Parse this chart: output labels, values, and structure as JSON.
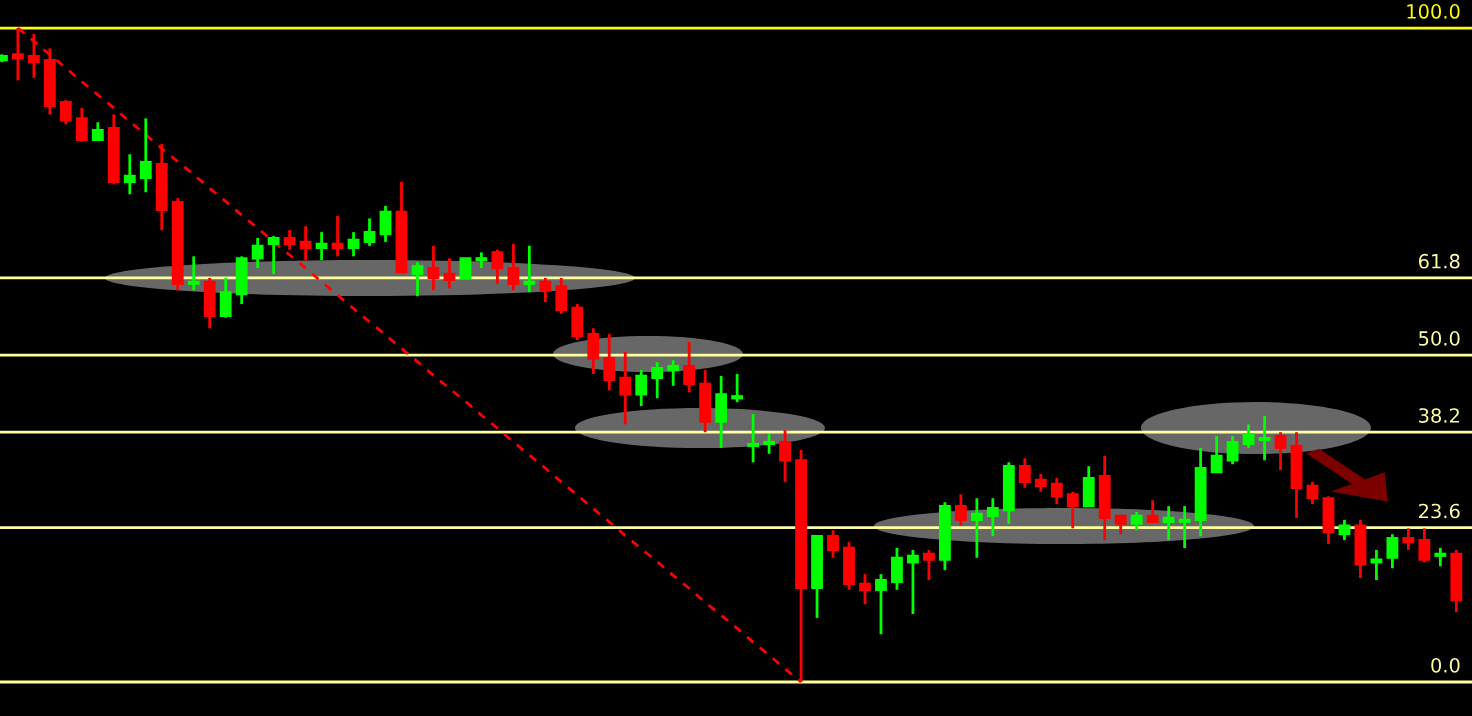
{
  "chart_data": {
    "type": "candlestick",
    "ylim": [
      -5.2,
      104.3
    ],
    "categories": [
      null,
      null,
      null,
      null,
      null,
      null,
      null,
      null,
      null,
      null,
      null,
      null,
      null,
      null,
      null,
      null,
      null,
      null,
      null,
      null,
      null,
      null,
      null,
      null,
      null,
      null,
      null,
      null,
      null,
      null,
      null,
      null,
      null,
      null,
      null,
      null,
      null,
      null,
      null,
      null,
      null,
      null,
      null,
      null,
      null,
      null,
      null,
      null,
      null,
      null,
      null,
      null,
      null,
      null,
      null,
      null,
      null,
      null,
      null,
      null,
      null,
      null,
      null,
      null,
      null,
      null,
      null,
      null,
      null,
      null,
      null,
      null,
      null,
      null,
      null,
      null,
      null,
      null,
      null,
      null,
      null,
      null,
      null,
      null,
      null,
      null,
      null,
      null,
      null,
      null,
      null,
      null
    ],
    "ohlc": [
      [
        95.1,
        96.0,
        94.8,
        95.7
      ],
      [
        96.0,
        100.0,
        92.0,
        95.4
      ],
      [
        95.7,
        99.1,
        92.4,
        94.8
      ],
      [
        95.1,
        96.9,
        86.8,
        88.1
      ],
      [
        88.7,
        89.0,
        85.3,
        85.9
      ],
      [
        86.2,
        87.8,
        82.6,
        82.9
      ],
      [
        82.9,
        85.6,
        82.9,
        84.4
      ],
      [
        84.7,
        86.8,
        76.1,
        76.5
      ],
      [
        76.5,
        80.7,
        74.6,
        77.4
      ],
      [
        77.1,
        86.2,
        74.9,
        79.5
      ],
      [
        79.2,
        82.3,
        69.1,
        72.2
      ],
      [
        73.4,
        74.0,
        59.9,
        60.9
      ],
      [
        60.9,
        65.1,
        59.9,
        61.2
      ],
      [
        61.2,
        61.8,
        54.1,
        56.0
      ],
      [
        56.0,
        61.8,
        55.7,
        59.6
      ],
      [
        59.3,
        65.1,
        57.8,
        64.8
      ],
      [
        64.8,
        67.9,
        63.3,
        66.7
      ],
      [
        67.0,
        68.2,
        62.4,
        67.9
      ],
      [
        67.9,
        69.1,
        66.1,
        67.0
      ],
      [
        67.3,
        69.7,
        64.5,
        66.4
      ],
      [
        66.4,
        68.8,
        64.5,
        67.0
      ],
      [
        67.0,
        71.3,
        65.1,
        66.4
      ],
      [
        66.4,
        68.8,
        65.1,
        67.6
      ],
      [
        67.3,
        70.9,
        66.7,
        68.8
      ],
      [
        68.5,
        72.8,
        67.3,
        71.9
      ],
      [
        71.9,
        76.5,
        62.7,
        62.7
      ],
      [
        62.4,
        64.2,
        59.0,
        63.6
      ],
      [
        63.3,
        66.7,
        59.9,
        61.8
      ],
      [
        62.4,
        64.8,
        60.2,
        61.5
      ],
      [
        61.8,
        64.8,
        61.8,
        64.8
      ],
      [
        64.5,
        65.7,
        63.3,
        64.8
      ],
      [
        65.7,
        66.1,
        60.9,
        63.3
      ],
      [
        63.3,
        67.0,
        59.9,
        60.9
      ],
      [
        60.9,
        66.7,
        59.6,
        61.2
      ],
      [
        61.2,
        61.8,
        58.1,
        59.9
      ],
      [
        60.5,
        61.8,
        56.3,
        56.9
      ],
      [
        57.2,
        57.8,
        52.3,
        52.9
      ],
      [
        53.2,
        54.1,
        47.1,
        49.5
      ],
      [
        49.5,
        53.2,
        44.6,
        46.2
      ],
      [
        46.5,
        50.5,
        39.4,
        44.0
      ],
      [
        44.0,
        47.7,
        42.2,
        46.8
      ],
      [
        46.5,
        48.9,
        43.4,
        48.0
      ],
      [
        47.7,
        49.2,
        45.3,
        48.3
      ],
      [
        48.3,
        52.0,
        44.3,
        45.6
      ],
      [
        45.6,
        47.7,
        38.2,
        39.8
      ],
      [
        39.8,
        46.8,
        35.8,
        44.0
      ],
      [
        43.4,
        47.1,
        42.8,
        43.7
      ],
      [
        36.1,
        41.0,
        33.6,
        36.4
      ],
      [
        36.4,
        37.9,
        34.9,
        36.7
      ],
      [
        36.7,
        38.5,
        30.6,
        33.9
      ],
      [
        33.9,
        35.5,
        0.0,
        14.4
      ],
      [
        14.4,
        22.3,
        9.8,
        22.3
      ],
      [
        22.3,
        23.2,
        19.0,
        20.2
      ],
      [
        20.5,
        21.4,
        14.1,
        15.0
      ],
      [
        15.0,
        16.5,
        11.9,
        14.1
      ],
      [
        14.1,
        16.5,
        7.3,
        15.6
      ],
      [
        15.3,
        20.5,
        14.1,
        19.0
      ],
      [
        18.3,
        20.2,
        10.4,
        19.3
      ],
      [
        19.6,
        20.2,
        15.6,
        18.7
      ],
      [
        18.7,
        27.5,
        17.1,
        26.9
      ],
      [
        26.9,
        28.7,
        23.9,
        24.8
      ],
      [
        24.8,
        28.1,
        19.0,
        25.7
      ],
      [
        25.4,
        28.1,
        22.3,
        26.6
      ],
      [
        26.3,
        33.6,
        24.2,
        33.0
      ],
      [
        33.0,
        34.2,
        29.7,
        30.6
      ],
      [
        30.9,
        31.8,
        29.1,
        30.0
      ],
      [
        30.3,
        31.2,
        27.2,
        28.4
      ],
      [
        28.7,
        29.1,
        23.5,
        26.9
      ],
      [
        26.9,
        33.0,
        26.9,
        31.2
      ],
      [
        31.5,
        34.6,
        21.7,
        25.1
      ],
      [
        25.4,
        25.4,
        22.6,
        24.2
      ],
      [
        24.2,
        26.0,
        23.2,
        25.4
      ],
      [
        25.4,
        27.8,
        24.5,
        24.5
      ],
      [
        24.5,
        26.9,
        21.7,
        25.1
      ],
      [
        24.5,
        26.9,
        20.5,
        24.8
      ],
      [
        24.8,
        35.8,
        22.3,
        32.7
      ],
      [
        32.1,
        37.6,
        32.1,
        34.6
      ],
      [
        33.9,
        37.6,
        33.3,
        36.7
      ],
      [
        36.4,
        39.4,
        35.8,
        37.9
      ],
      [
        37.0,
        40.7,
        33.9,
        37.3
      ],
      [
        37.6,
        38.2,
        32.4,
        35.8
      ],
      [
        36.1,
        38.2,
        25.1,
        29.7
      ],
      [
        30.0,
        30.6,
        27.2,
        28.1
      ],
      [
        28.1,
        28.4,
        21.1,
        22.9
      ],
      [
        22.6,
        24.8,
        21.7,
        23.9
      ],
      [
        23.9,
        24.8,
        15.9,
        18.0
      ],
      [
        18.3,
        20.2,
        15.6,
        18.7
      ],
      [
        19.0,
        22.6,
        17.4,
        22.0
      ],
      [
        22.0,
        23.5,
        20.2,
        21.4
      ],
      [
        21.7,
        23.5,
        18.3,
        18.7
      ],
      [
        19.3,
        20.5,
        17.7,
        19.6
      ],
      [
        19.6,
        20.2,
        10.7,
        12.5
      ]
    ],
    "colors": [
      "#00ff00",
      "#ff0000",
      "#ff0000",
      "#ff0000",
      "#ff0000",
      "#ff0000",
      "#00ff00",
      "#ff0000",
      "#00ff00",
      "#00ff00",
      "#ff0000",
      "#ff0000",
      "#00ff00",
      "#ff0000",
      "#00ff00",
      "#00ff00",
      "#00ff00",
      "#00ff00",
      "#ff0000",
      "#ff0000",
      "#00ff00",
      "#ff0000",
      "#00ff00",
      "#00ff00",
      "#00ff00",
      "#ff0000",
      "#00ff00",
      "#ff0000",
      "#ff0000",
      "#00ff00",
      "#00ff00",
      "#ff0000",
      "#ff0000",
      "#00ff00",
      "#ff0000",
      "#ff0000",
      "#ff0000",
      "#ff0000",
      "#ff0000",
      "#ff0000",
      "#00ff00",
      "#00ff00",
      "#00ff00",
      "#ff0000",
      "#ff0000",
      "#00ff00",
      "#00ff00",
      "#00ff00",
      "#00ff00",
      "#ff0000",
      "#ff0000",
      "#00ff00",
      "#ff0000",
      "#ff0000",
      "#ff0000",
      "#00ff00",
      "#00ff00",
      "#00ff00",
      "#ff0000",
      "#00ff00",
      "#ff0000",
      "#00ff00",
      "#00ff00",
      "#00ff00",
      "#ff0000",
      "#ff0000",
      "#ff0000",
      "#ff0000",
      "#00ff00",
      "#ff0000",
      "#ff0000",
      "#00ff00",
      "#ff0000",
      "#00ff00",
      "#00ff00",
      "#00ff00",
      "#00ff00",
      "#00ff00",
      "#00ff00",
      "#00ff00",
      "#ff0000",
      "#ff0000",
      "#ff0000",
      "#ff0000",
      "#00ff00",
      "#ff0000",
      "#00ff00",
      "#00ff00",
      "#ff0000",
      "#ff0000",
      "#00ff00",
      "#ff0000"
    ],
    "series": [
      {
        "type": "line",
        "values": [
          null,
          100.0,
          98.0,
          95.9,
          93.9,
          91.8,
          89.8,
          87.8,
          85.7,
          83.7,
          81.6,
          79.6,
          77.6,
          75.5,
          73.5,
          71.4,
          69.4,
          67.3,
          65.3,
          63.3,
          61.2,
          59.2,
          57.1,
          55.1,
          53.1,
          51.0,
          49.0,
          46.9,
          44.9,
          42.9,
          40.8,
          38.8,
          36.7,
          34.7,
          32.7,
          30.6,
          28.6,
          26.5,
          24.5,
          22.4,
          20.4,
          18.4,
          16.3,
          14.3,
          12.2,
          10.2,
          8.2,
          6.1,
          4.1,
          2.0,
          0.0,
          null,
          null,
          null,
          null,
          null,
          null,
          null,
          null,
          null,
          null,
          null,
          null,
          null,
          null,
          null,
          null,
          null,
          null,
          null,
          null,
          null,
          null,
          null,
          null,
          null,
          null,
          null,
          null,
          null,
          null,
          null,
          null,
          null,
          null,
          null,
          null,
          null,
          null,
          null,
          null,
          null
        ],
        "color": "#ff0000",
        "line_style": "dashed"
      }
    ],
    "ref_lines": [
      {
        "axis": "y",
        "value": 100.0,
        "label": "100.0",
        "color": "#ffff00"
      },
      {
        "axis": "y",
        "value": 61.8,
        "label": "61.8",
        "color": "#ffffa0"
      },
      {
        "axis": "y",
        "value": 50.0,
        "label": "50.0",
        "color": "#ffffa0"
      },
      {
        "axis": "y",
        "value": 38.2,
        "label": "38.2",
        "color": "#ffffa0"
      },
      {
        "axis": "y",
        "value": 23.6,
        "label": "23.6",
        "color": "#ffffa0"
      },
      {
        "axis": "y",
        "value": 0.0,
        "label": "0.0",
        "color": "#ffffa0"
      }
    ]
  }
}
